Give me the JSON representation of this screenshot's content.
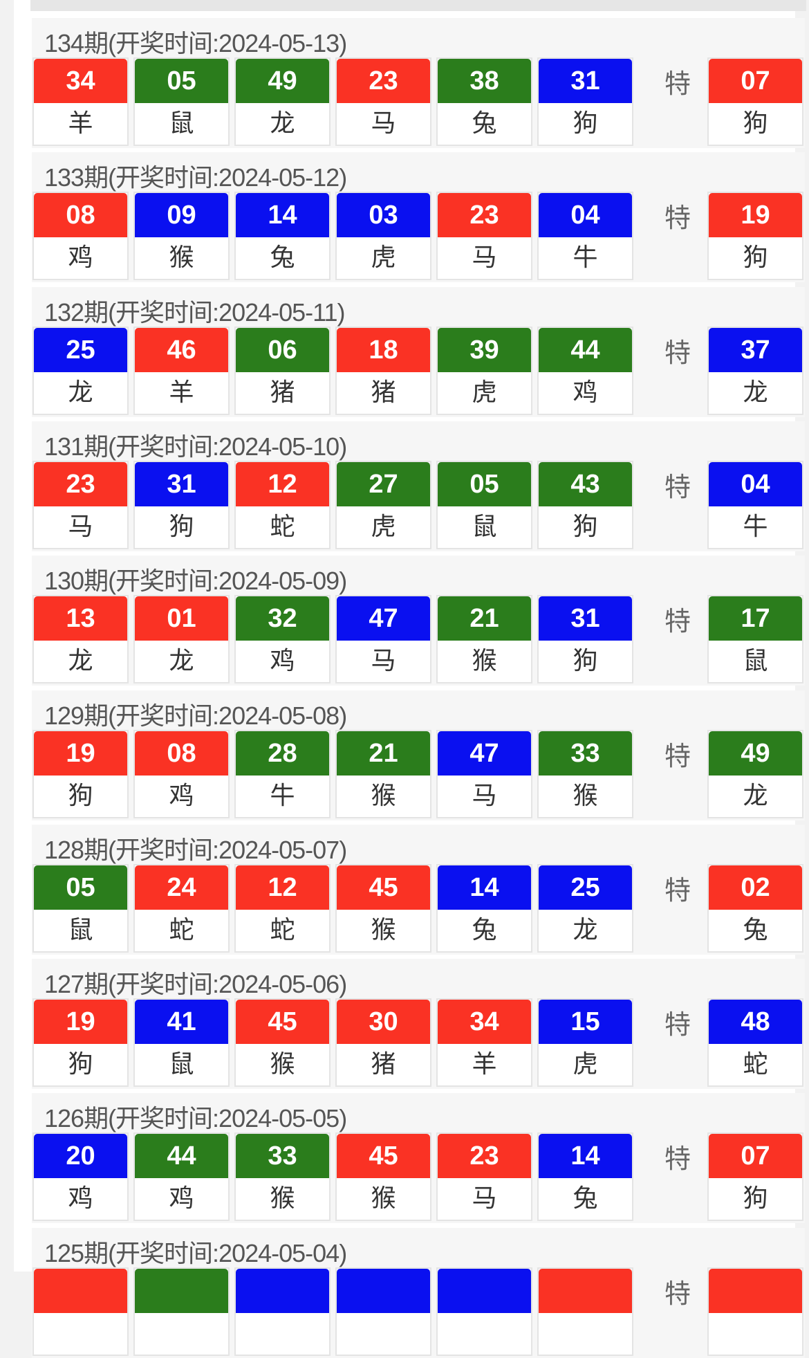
{
  "colors": {
    "red": "#fa3224",
    "green": "#2b7d1c",
    "blue": "#0a10f0"
  },
  "special_label": "特",
  "draws": [
    {
      "header": "134期(开奖时间:2024-05-13)",
      "balls": [
        [
          "34",
          "red",
          "羊"
        ],
        [
          "05",
          "green",
          "鼠"
        ],
        [
          "49",
          "green",
          "龙"
        ],
        [
          "23",
          "red",
          "马"
        ],
        [
          "38",
          "green",
          "兔"
        ],
        [
          "31",
          "blue",
          "狗"
        ]
      ],
      "special": [
        "07",
        "red",
        "狗"
      ]
    },
    {
      "header": "133期(开奖时间:2024-05-12)",
      "balls": [
        [
          "08",
          "red",
          "鸡"
        ],
        [
          "09",
          "blue",
          "猴"
        ],
        [
          "14",
          "blue",
          "兔"
        ],
        [
          "03",
          "blue",
          "虎"
        ],
        [
          "23",
          "red",
          "马"
        ],
        [
          "04",
          "blue",
          "牛"
        ]
      ],
      "special": [
        "19",
        "red",
        "狗"
      ]
    },
    {
      "header": "132期(开奖时间:2024-05-11)",
      "balls": [
        [
          "25",
          "blue",
          "龙"
        ],
        [
          "46",
          "red",
          "羊"
        ],
        [
          "06",
          "green",
          "猪"
        ],
        [
          "18",
          "red",
          "猪"
        ],
        [
          "39",
          "green",
          "虎"
        ],
        [
          "44",
          "green",
          "鸡"
        ]
      ],
      "special": [
        "37",
        "blue",
        "龙"
      ]
    },
    {
      "header": "131期(开奖时间:2024-05-10)",
      "balls": [
        [
          "23",
          "red",
          "马"
        ],
        [
          "31",
          "blue",
          "狗"
        ],
        [
          "12",
          "red",
          "蛇"
        ],
        [
          "27",
          "green",
          "虎"
        ],
        [
          "05",
          "green",
          "鼠"
        ],
        [
          "43",
          "green",
          "狗"
        ]
      ],
      "special": [
        "04",
        "blue",
        "牛"
      ]
    },
    {
      "header": "130期(开奖时间:2024-05-09)",
      "balls": [
        [
          "13",
          "red",
          "龙"
        ],
        [
          "01",
          "red",
          "龙"
        ],
        [
          "32",
          "green",
          "鸡"
        ],
        [
          "47",
          "blue",
          "马"
        ],
        [
          "21",
          "green",
          "猴"
        ],
        [
          "31",
          "blue",
          "狗"
        ]
      ],
      "special": [
        "17",
        "green",
        "鼠"
      ]
    },
    {
      "header": "129期(开奖时间:2024-05-08)",
      "balls": [
        [
          "19",
          "red",
          "狗"
        ],
        [
          "08",
          "red",
          "鸡"
        ],
        [
          "28",
          "green",
          "牛"
        ],
        [
          "21",
          "green",
          "猴"
        ],
        [
          "47",
          "blue",
          "马"
        ],
        [
          "33",
          "green",
          "猴"
        ]
      ],
      "special": [
        "49",
        "green",
        "龙"
      ]
    },
    {
      "header": "128期(开奖时间:2024-05-07)",
      "balls": [
        [
          "05",
          "green",
          "鼠"
        ],
        [
          "24",
          "red",
          "蛇"
        ],
        [
          "12",
          "red",
          "蛇"
        ],
        [
          "45",
          "red",
          "猴"
        ],
        [
          "14",
          "blue",
          "兔"
        ],
        [
          "25",
          "blue",
          "龙"
        ]
      ],
      "special": [
        "02",
        "red",
        "兔"
      ]
    },
    {
      "header": "127期(开奖时间:2024-05-06)",
      "balls": [
        [
          "19",
          "red",
          "狗"
        ],
        [
          "41",
          "blue",
          "鼠"
        ],
        [
          "45",
          "red",
          "猴"
        ],
        [
          "30",
          "red",
          "猪"
        ],
        [
          "34",
          "red",
          "羊"
        ],
        [
          "15",
          "blue",
          "虎"
        ]
      ],
      "special": [
        "48",
        "blue",
        "蛇"
      ]
    },
    {
      "header": "126期(开奖时间:2024-05-05)",
      "balls": [
        [
          "20",
          "blue",
          "鸡"
        ],
        [
          "44",
          "green",
          "鸡"
        ],
        [
          "33",
          "green",
          "猴"
        ],
        [
          "45",
          "red",
          "猴"
        ],
        [
          "23",
          "red",
          "马"
        ],
        [
          "14",
          "blue",
          "兔"
        ]
      ],
      "special": [
        "07",
        "red",
        "狗"
      ]
    },
    {
      "header": "125期(开奖时间:2024-05-04)",
      "balls": [
        [
          "",
          "red",
          ""
        ],
        [
          "",
          "green",
          ""
        ],
        [
          "",
          "blue",
          ""
        ],
        [
          "",
          "blue",
          ""
        ],
        [
          "",
          "blue",
          ""
        ],
        [
          "",
          "red",
          ""
        ]
      ],
      "special": [
        "",
        "red",
        ""
      ]
    }
  ]
}
